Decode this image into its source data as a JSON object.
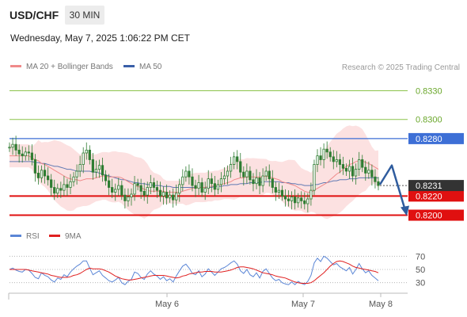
{
  "header": {
    "symbol": "USD/CHF",
    "timeframe": "30 MIN",
    "datetime": "Wednesday, May 7, 2025 1:06:22 PM CET"
  },
  "legend": {
    "ma20_label": "MA 20 + Bollinger Bands",
    "ma50_label": "MA 50",
    "copyright": "Research © 2025 Trading Central",
    "rsi_label": "RSI",
    "rsi_ma_label": "9MA"
  },
  "colors": {
    "ma20": "#f08a8a",
    "ma50": "#3a5fa8",
    "bollinger_fill": "#fbdcdc",
    "candle": "#2e7d32",
    "resistance_green": "#8bc34a",
    "resistance_blue": "#3d6fd6",
    "support_red": "#e01010",
    "last_price": "#333333",
    "forecast_arrow": "#2f5c9e",
    "rsi_line": "#5b86d6",
    "rsi_ma_line": "#e02020"
  },
  "chart_data": {
    "type": "candlestick",
    "instrument": "USD/CHF",
    "interval": "30 MIN",
    "ylim": [
      0.8193,
      0.8342
    ],
    "x_labels": [
      "May 6",
      "May 7",
      "May 8"
    ],
    "levels": [
      {
        "label": "0.8330",
        "value": 0.833,
        "color": "#8bc34a"
      },
      {
        "label": "0.8300",
        "value": 0.83,
        "color": "#8bc34a"
      },
      {
        "label": "0.8280",
        "value": 0.828,
        "color": "#3d6fd6"
      },
      {
        "label": "0.8220",
        "value": 0.822,
        "color": "#e01010"
      },
      {
        "label": "0.8200",
        "value": 0.82,
        "color": "#e01010"
      }
    ],
    "last_price": {
      "label": "0.8231",
      "value": 0.8231
    },
    "forecast": {
      "from": 0.8232,
      "peak": 0.8252,
      "target": 0.82
    },
    "close_series": [
      0.8271,
      0.8274,
      0.8268,
      0.8264,
      0.8262,
      0.8266,
      0.8265,
      0.8258,
      0.8244,
      0.8239,
      0.8247,
      0.8241,
      0.8237,
      0.8229,
      0.8223,
      0.8228,
      0.8226,
      0.8232,
      0.8229,
      0.8235,
      0.824,
      0.8246,
      0.8253,
      0.8265,
      0.8268,
      0.8258,
      0.8245,
      0.8248,
      0.8252,
      0.8242,
      0.8236,
      0.8229,
      0.8224,
      0.8227,
      0.8231,
      0.8221,
      0.8215,
      0.8219,
      0.8222,
      0.8233,
      0.8231,
      0.8225,
      0.8221,
      0.8229,
      0.8234,
      0.8229,
      0.8226,
      0.822,
      0.8224,
      0.8218,
      0.8221,
      0.8216,
      0.8223,
      0.8232,
      0.824,
      0.8246,
      0.824,
      0.8231,
      0.8228,
      0.8234,
      0.8224,
      0.8228,
      0.8238,
      0.8233,
      0.8227,
      0.8232,
      0.8238,
      0.8241,
      0.8246,
      0.8253,
      0.8261,
      0.8256,
      0.8245,
      0.824,
      0.8246,
      0.8237,
      0.8233,
      0.8239,
      0.8231,
      0.8241,
      0.8246,
      0.8238,
      0.8229,
      0.8224,
      0.8226,
      0.822,
      0.8217,
      0.8215,
      0.8219,
      0.8213,
      0.8218,
      0.8215,
      0.8212,
      0.8217,
      0.8226,
      0.8253,
      0.8262,
      0.8258,
      0.8269,
      0.8266,
      0.8261,
      0.8256,
      0.8258,
      0.8253,
      0.8249,
      0.8246,
      0.8251,
      0.8241,
      0.8248,
      0.8258,
      0.825,
      0.8244,
      0.8247,
      0.824,
      0.8235,
      0.8231
    ],
    "ma20": [
      0.8262,
      0.8262,
      0.8262,
      0.8262,
      0.8262,
      0.8262,
      0.8262,
      0.826,
      0.8258,
      0.8257,
      0.8254,
      0.8253,
      0.8251,
      0.8249,
      0.8247,
      0.8245,
      0.8243,
      0.8241,
      0.8239,
      0.8238,
      0.8237,
      0.8237,
      0.8236,
      0.8237,
      0.8238,
      0.8238,
      0.8238,
      0.8239,
      0.824,
      0.8241,
      0.8241,
      0.824,
      0.824,
      0.824,
      0.824,
      0.8239,
      0.8237,
      0.8235,
      0.8233,
      0.8231,
      0.823,
      0.8229,
      0.8227,
      0.8226,
      0.8225,
      0.8225,
      0.8225,
      0.8225,
      0.8225,
      0.8224,
      0.8224,
      0.8224,
      0.8224,
      0.8224,
      0.8225,
      0.8226,
      0.8227,
      0.8228,
      0.8229,
      0.8229,
      0.8229,
      0.8229,
      0.823,
      0.823,
      0.8231,
      0.8231,
      0.8232,
      0.8233,
      0.8234,
      0.8235,
      0.8237,
      0.8238,
      0.8239,
      0.8239,
      0.824,
      0.824,
      0.824,
      0.824,
      0.824,
      0.824,
      0.8241,
      0.824,
      0.8239,
      0.8238,
      0.8237,
      0.8235,
      0.8234,
      0.8233,
      0.8232,
      0.8231,
      0.8229,
      0.8227,
      0.8225,
      0.8224,
      0.8224,
      0.8226,
      0.8228,
      0.823,
      0.8232,
      0.8234,
      0.8237,
      0.824,
      0.8243,
      0.8245,
      0.8248,
      0.8251,
      0.8253,
      0.8254,
      0.8256,
      0.8257,
      0.8257,
      0.8255,
      0.8254,
      0.8252,
      0.825,
      0.8248
    ],
    "ma50": [
      0.8256,
      0.8256,
      0.8256,
      0.8256,
      0.8256,
      0.8256,
      0.8256,
      0.8256,
      0.8255,
      0.8255,
      0.8254,
      0.8254,
      0.8253,
      0.8252,
      0.8251,
      0.8251,
      0.825,
      0.8249,
      0.8248,
      0.8248,
      0.8247,
      0.8246,
      0.8246,
      0.8246,
      0.8246,
      0.8246,
      0.8245,
      0.8245,
      0.8244,
      0.8243,
      0.8242,
      0.8241,
      0.824,
      0.8239,
      0.8238,
      0.8237,
      0.8237,
      0.8236,
      0.8235,
      0.8234,
      0.8234,
      0.8233,
      0.8233,
      0.8232,
      0.8232,
      0.8231,
      0.8231,
      0.8231,
      0.823,
      0.823,
      0.823,
      0.8229,
      0.8229,
      0.8229,
      0.8229,
      0.8229,
      0.8229,
      0.8229,
      0.8229,
      0.8229,
      0.8229,
      0.8229,
      0.8229,
      0.8229,
      0.823,
      0.823,
      0.823,
      0.8231,
      0.8231,
      0.8232,
      0.8232,
      0.8232,
      0.8233,
      0.8233,
      0.8233,
      0.8234,
      0.8234,
      0.8234,
      0.8234,
      0.8235,
      0.8235,
      0.8235,
      0.8235,
      0.8235,
      0.8235,
      0.8234,
      0.8234,
      0.8234,
      0.8233,
      0.8233,
      0.8232,
      0.8232,
      0.8231,
      0.8231,
      0.8231,
      0.8232,
      0.8232,
      0.8233,
      0.8234,
      0.8234,
      0.8235,
      0.8236,
      0.8236,
      0.8237,
      0.8237,
      0.8237,
      0.8238,
      0.8238,
      0.8238,
      0.8239,
      0.8239,
      0.8239,
      0.8239,
      0.8239,
      0.8239,
      0.8239
    ],
    "rsi": {
      "ylim": [
        20,
        80
      ],
      "levels": [
        {
          "label": "70",
          "value": 70
        },
        {
          "label": "50",
          "value": 50
        },
        {
          "label": "30",
          "value": 30
        }
      ],
      "values": [
        50,
        52,
        49,
        47,
        46,
        50,
        49,
        44,
        38,
        36,
        45,
        41,
        39,
        34,
        31,
        37,
        35,
        42,
        39,
        46,
        51,
        55,
        58,
        63,
        63,
        52,
        42,
        45,
        48,
        41,
        37,
        33,
        31,
        34,
        38,
        30,
        27,
        32,
        35,
        46,
        44,
        38,
        35,
        43,
        48,
        43,
        40,
        35,
        39,
        33,
        36,
        31,
        40,
        48,
        55,
        58,
        52,
        44,
        42,
        48,
        39,
        43,
        51,
        46,
        41,
        46,
        51,
        53,
        56,
        60,
        63,
        58,
        48,
        44,
        50,
        42,
        39,
        45,
        37,
        47,
        51,
        44,
        37,
        33,
        35,
        30,
        28,
        27,
        31,
        27,
        32,
        29,
        27,
        32,
        41,
        60,
        67,
        62,
        70,
        67,
        62,
        57,
        59,
        54,
        51,
        48,
        53,
        43,
        50,
        59,
        51,
        45,
        48,
        41,
        37,
        33
      ],
      "ma9": [
        50,
        50,
        50,
        50,
        50,
        50,
        49,
        48,
        47,
        46,
        45,
        44,
        43,
        41,
        40,
        39,
        38,
        38,
        38,
        39,
        41,
        42,
        44,
        47,
        50,
        52,
        51,
        51,
        51,
        50,
        48,
        46,
        43,
        40,
        38,
        36,
        35,
        34,
        34,
        35,
        36,
        37,
        38,
        39,
        40,
        41,
        41,
        41,
        41,
        40,
        39,
        38,
        37,
        38,
        40,
        41,
        43,
        44,
        45,
        46,
        46,
        47,
        47,
        47,
        46,
        46,
        46,
        47,
        48,
        49,
        51,
        53,
        54,
        54,
        53,
        52,
        51,
        49,
        47,
        45,
        44,
        43,
        42,
        40,
        39,
        38,
        37,
        35,
        33,
        31,
        30,
        29,
        29,
        29,
        30,
        33,
        37,
        41,
        45,
        50,
        55,
        59,
        62,
        63,
        62,
        60,
        58,
        55,
        53,
        52,
        51,
        50,
        49,
        48,
        47,
        45
      ]
    }
  }
}
